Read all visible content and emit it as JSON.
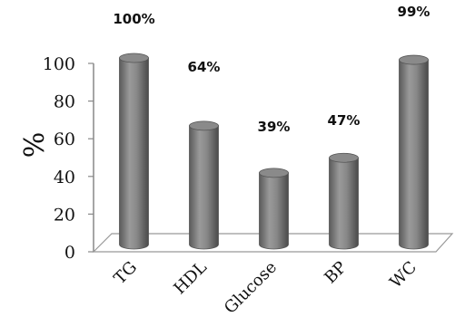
{
  "chart_data": {
    "type": "bar",
    "categories": [
      "TG",
      "HDL",
      "Glucose",
      "BP",
      "WC"
    ],
    "values": [
      100,
      64,
      39,
      47,
      99
    ],
    "data_labels": [
      "100%",
      "64%",
      "39%",
      "47%",
      "99%"
    ],
    "title": "",
    "xlabel": "",
    "ylabel": "%",
    "ylim": [
      0,
      100
    ],
    "yticks": [
      "0",
      "20",
      "40",
      "60",
      "80",
      "100"
    ],
    "grid": false,
    "legend": "none",
    "bar_color": "#7f7f7f"
  }
}
